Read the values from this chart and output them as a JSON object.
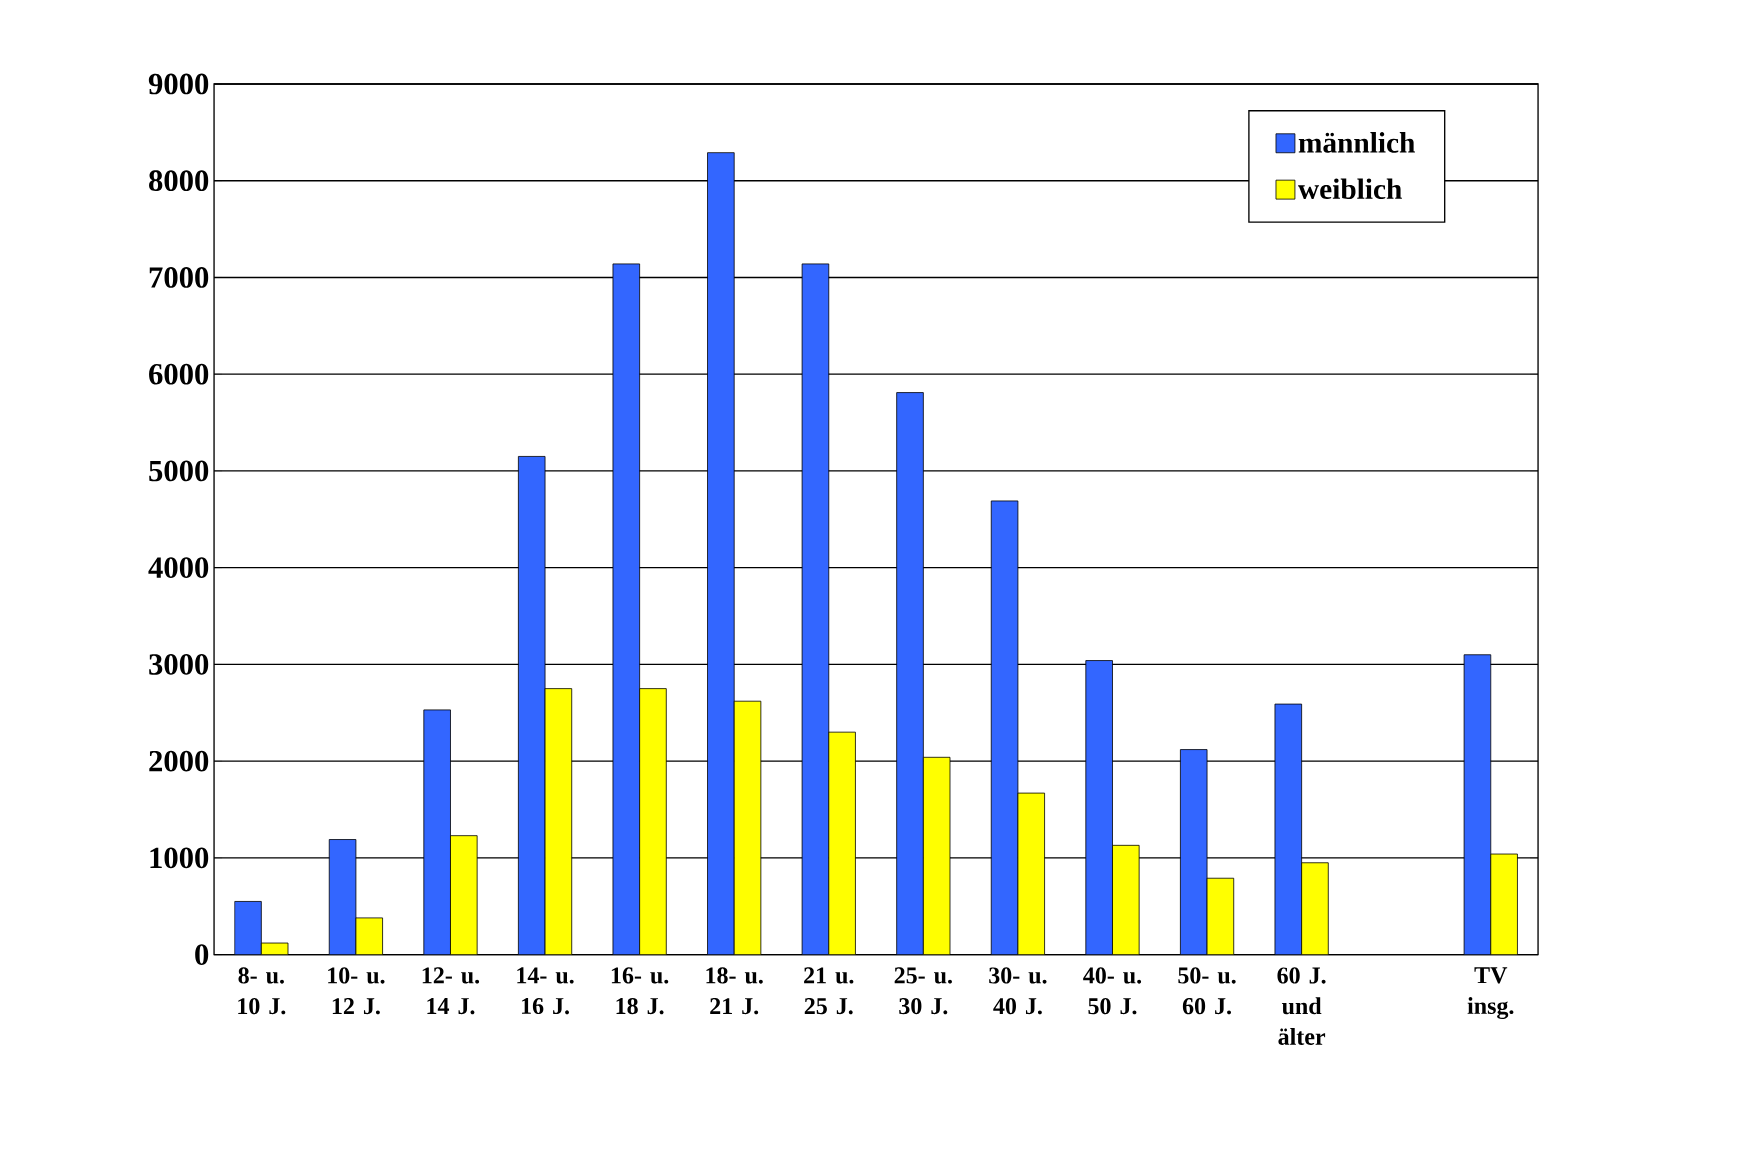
{
  "chart_data": {
    "type": "bar",
    "categories": [
      "8- u. 10 J.",
      "10- u. 12 J.",
      "12- u. 14 J.",
      "14- u. 16 J.",
      "16- u. 18 J.",
      "18- u. 21 J.",
      "21 u. 25 J.",
      "25- u. 30 J.",
      "30- u. 40 J.",
      "40- u. 50 J.",
      "50- u. 60 J.",
      "60 J. und älter",
      null,
      "TV insg."
    ],
    "series": [
      {
        "name": "männlich",
        "color": "#3366ff",
        "values": [
          550,
          1190,
          2530,
          5150,
          7140,
          8290,
          7140,
          5810,
          4690,
          3040,
          2120,
          2590,
          null,
          3100
        ]
      },
      {
        "name": "weiblich",
        "color": "#ffff00",
        "values": [
          120,
          380,
          1230,
          2750,
          2750,
          2620,
          2300,
          2040,
          1670,
          1130,
          790,
          950,
          null,
          1040
        ]
      }
    ],
    "ylim": [
      0,
      9000
    ],
    "yticks": [
      0,
      1000,
      2000,
      3000,
      4000,
      5000,
      6000,
      7000,
      8000,
      9000
    ],
    "grid": "y",
    "legend": "top right"
  }
}
